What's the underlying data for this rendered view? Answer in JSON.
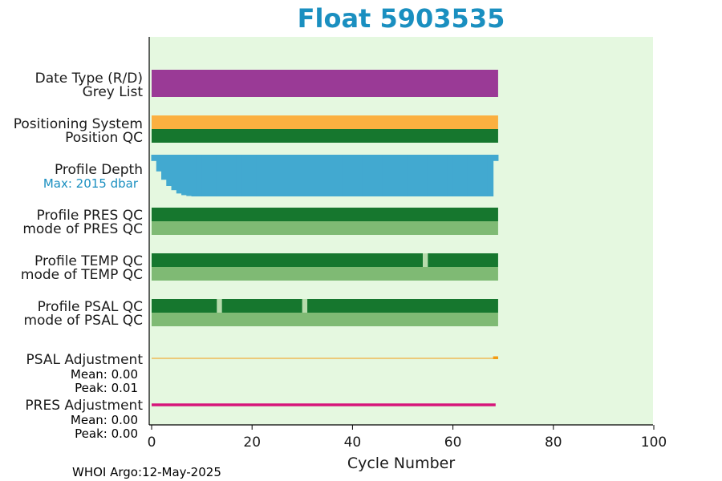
{
  "chart_data": {
    "type": "bar",
    "title": "Float 5903535",
    "xlabel": "Cycle Number",
    "xlim": [
      0,
      100
    ],
    "x_ticks": [
      0,
      20,
      40,
      60,
      80,
      100
    ],
    "last_cycle": 69,
    "grid": false,
    "rows": [
      {
        "key": "date_type",
        "label": "Date Type (R/D)",
        "color": "#9a3a96",
        "segments": [
          {
            "start": 0,
            "end": 69,
            "color": "#9a3a96"
          }
        ]
      },
      {
        "key": "grey_list",
        "label": "Grey List",
        "color": "#9a3a96",
        "segments": [
          {
            "start": 0,
            "end": 69,
            "color": "#9a3a96"
          }
        ]
      },
      {
        "key": "positioning_system",
        "label": "Positioning System",
        "color": "#fbb040",
        "segments": [
          {
            "start": 0,
            "end": 69,
            "color": "#fbb040"
          }
        ]
      },
      {
        "key": "position_qc",
        "label": "Position QC",
        "color": "#16772e",
        "segments": [
          {
            "start": 0,
            "end": 69,
            "color": "#16772e"
          }
        ]
      },
      {
        "key": "pres_qc",
        "label": "Profile PRES QC",
        "color": "#16772e",
        "segments": [
          {
            "start": 0,
            "end": 69,
            "color": "#16772e"
          }
        ]
      },
      {
        "key": "pres_mode",
        "label": "mode of PRES QC",
        "color": "#7fba74",
        "segments": [
          {
            "start": 0,
            "end": 69,
            "color": "#7fba74"
          }
        ]
      },
      {
        "key": "temp_qc",
        "label": "Profile TEMP QC",
        "color": "#16772e",
        "segments": [
          {
            "start": 0,
            "end": 54,
            "color": "#16772e"
          },
          {
            "start": 54,
            "end": 55,
            "color": "#b7dbac"
          },
          {
            "start": 55,
            "end": 69,
            "color": "#16772e"
          }
        ]
      },
      {
        "key": "temp_mode",
        "label": "mode of TEMP QC",
        "color": "#7fba74",
        "segments": [
          {
            "start": 0,
            "end": 69,
            "color": "#7fba74"
          }
        ]
      },
      {
        "key": "psal_qc",
        "label": "Profile PSAL QC",
        "color": "#16772e",
        "segments": [
          {
            "start": 0,
            "end": 13,
            "color": "#16772e"
          },
          {
            "start": 13,
            "end": 14,
            "color": "#b7dbac"
          },
          {
            "start": 14,
            "end": 30,
            "color": "#16772e"
          },
          {
            "start": 30,
            "end": 31,
            "color": "#b7dbac"
          },
          {
            "start": 31,
            "end": 69,
            "color": "#16772e"
          }
        ]
      },
      {
        "key": "psal_mode",
        "label": "mode of PSAL QC",
        "color": "#7fba74",
        "segments": [
          {
            "start": 0,
            "end": 69,
            "color": "#7fba74"
          }
        ]
      }
    ],
    "profile_depth": {
      "label": "Profile Depth",
      "max_label": "Max: 2015 dbar",
      "max_dbar": 2015,
      "color": "#42a9d0",
      "label_color": "#1a8fc0",
      "depth_fraction": [
        0.15,
        0.4,
        0.6,
        0.75,
        0.85,
        0.93,
        0.97,
        0.99,
        1.0,
        1.0,
        1.0,
        1.0,
        1.0,
        1.0,
        1.0,
        1.0,
        1.0,
        1.0,
        1.0,
        1.0,
        1.0,
        1.0,
        1.0,
        1.0,
        1.0,
        1.0,
        1.0,
        1.0,
        1.0,
        1.0,
        1.0,
        1.0,
        1.0,
        1.0,
        1.0,
        1.0,
        1.0,
        1.0,
        1.0,
        1.0,
        1.0,
        1.0,
        1.0,
        1.0,
        1.0,
        1.0,
        1.0,
        1.0,
        1.0,
        1.0,
        1.0,
        1.0,
        1.0,
        1.0,
        1.0,
        1.0,
        1.0,
        1.0,
        1.0,
        1.0,
        1.0,
        1.0,
        1.0,
        1.0,
        1.0,
        1.0,
        1.0,
        1.0,
        0.15
      ]
    },
    "psal_adjustment": {
      "label": "PSAL Adjustment",
      "mean_label": "Mean: 0.00",
      "peak_label": "Peak: 0.01",
      "color": "#f39c12",
      "last_cycle_value": 0.01
    },
    "pres_adjustment": {
      "label": "PRES Adjustment",
      "mean_label": "Mean: 0.00",
      "peak_label": "Peak: 0.00",
      "color": "#d6167a"
    },
    "footer": "WHOI Argo:12-May-2025",
    "colors": {
      "plot_background": "#e5f8e0",
      "title": "#1a8fc0",
      "axis": "#000000"
    }
  }
}
